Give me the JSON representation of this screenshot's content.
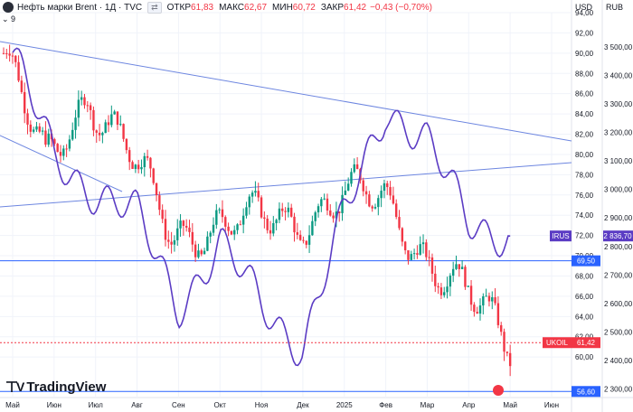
{
  "header": {
    "title": "Нефть марки Brent · 1Д · TVC",
    "open_label": "ОТКР",
    "open_value": "61,83",
    "high_label": "МАКС",
    "high_value": "62,67",
    "low_label": "МИН",
    "low_value": "60,72",
    "close_label": "ЗАКР",
    "close_value": "61,42",
    "change": "−0,43 (−0,70%)",
    "indicator_count": "9"
  },
  "brand": "TradingView",
  "colors": {
    "up": "#089981",
    "down": "#f23645",
    "irus_line": "#5b3cc4",
    "trend": "#6d86e0",
    "level": "#2962ff",
    "bg": "#ffffff",
    "grid": "#f0f3fa"
  },
  "chart_data": {
    "type": "candlestick",
    "title": "Нефть марки Brent · 1Д · TVC",
    "left_axis": {
      "unit": "USD",
      "min": 56,
      "max": 94,
      "ticks": [
        "94,00",
        "92,00",
        "90,00",
        "88,00",
        "86,00",
        "84,00",
        "82,00",
        "80,00",
        "78,00",
        "76,00",
        "74,00",
        "72,00",
        "70,00",
        "68,00",
        "66,00",
        "64,00",
        "62,00",
        "60,00"
      ]
    },
    "right_axis": {
      "unit": "RUB",
      "min": 2270,
      "max": 3620,
      "ticks": [
        "3 500,00",
        "3 400,00",
        "3 300,00",
        "3 200,00",
        "3 100,00",
        "3 000,00",
        "2 900,00",
        "2 800,00",
        "2 700,00",
        "2 600,00",
        "2 500,00",
        "2 400,00",
        "2 300,00"
      ]
    },
    "x_ticks": [
      "Май",
      "Июн",
      "Июл",
      "Авг",
      "Сен",
      "Окт",
      "Ноя",
      "Дек",
      "2025",
      "Фев",
      "Мар",
      "Апр",
      "Май",
      "Июн"
    ],
    "brent_close_approx": [
      {
        "x": "Май",
        "y": 90.0
      },
      {
        "x": "Июн",
        "y": 79.0
      },
      {
        "x": "Июл",
        "y": 86.0
      },
      {
        "x": "Авг",
        "y": 80.0
      },
      {
        "x": "Сен",
        "y": 72.0
      },
      {
        "x": "Окт",
        "y": 73.0
      },
      {
        "x": "Ноя",
        "y": 73.5
      },
      {
        "x": "Дек",
        "y": 73.5
      },
      {
        "x": "2025",
        "y": 76.0
      },
      {
        "x": "Фев",
        "y": 75.5
      },
      {
        "x": "Мар",
        "y": 70.0
      },
      {
        "x": "Апр",
        "y": 66.0
      },
      {
        "x": "Май",
        "y": 61.4
      }
    ],
    "series": [
      {
        "name": "IRUS",
        "axis": "RUB",
        "last": "2 836,70",
        "points_approx": [
          {
            "x": "Май",
            "y": 3480
          },
          {
            "x": "Июн",
            "y": 3100
          },
          {
            "x": "Июл",
            "y": 3000
          },
          {
            "x": "Авг",
            "y": 2900
          },
          {
            "x": "Сен",
            "y": 2600
          },
          {
            "x": "Окт",
            "y": 2800
          },
          {
            "x": "Ноя",
            "y": 2600
          },
          {
            "x": "Дек",
            "y": 2450
          },
          {
            "x": "2025",
            "y": 2900
          },
          {
            "x": "Фев",
            "y": 3300
          },
          {
            "x": "Мар",
            "y": 3150
          },
          {
            "x": "Апр",
            "y": 2900
          },
          {
            "x": "Май",
            "y": 2836.7
          }
        ]
      }
    ],
    "levels": [
      {
        "label": "69,50",
        "value": 69.5,
        "axis": "USD"
      },
      {
        "label": "56,60",
        "value": 56.6,
        "axis": "USD"
      }
    ],
    "price_tags": [
      {
        "name": "IRUS",
        "value": "2 836,70"
      },
      {
        "name": "UKOIL",
        "value": "61,42"
      }
    ]
  }
}
